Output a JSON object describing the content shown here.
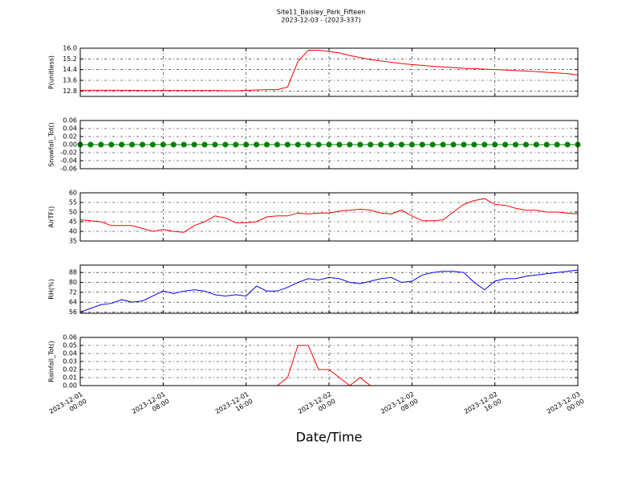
{
  "title": "Site11_Baisley_Park_Fifteen",
  "subtitle": "2023-12-03 - (2023-337)",
  "x_label": "Date/Time",
  "xlim": [
    "2023-12-01 00:00",
    "2023-12-03 00:00"
  ],
  "xticks": [
    "2023-12-01 00:00",
    "2023-12-01 08:00",
    "2023-12-01 16:00",
    "2023-12-02 00:00",
    "2023-12-02 08:00",
    "2023-12-02 16:00",
    "2023-12-03 00:00"
  ],
  "x": [
    "2023-12-01 00:00",
    "2023-12-01 01:00",
    "2023-12-01 02:00",
    "2023-12-01 03:00",
    "2023-12-01 04:00",
    "2023-12-01 05:00",
    "2023-12-01 06:00",
    "2023-12-01 07:00",
    "2023-12-01 08:00",
    "2023-12-01 09:00",
    "2023-12-01 10:00",
    "2023-12-01 11:00",
    "2023-12-01 12:00",
    "2023-12-01 13:00",
    "2023-12-01 14:00",
    "2023-12-01 15:00",
    "2023-12-01 16:00",
    "2023-12-01 17:00",
    "2023-12-01 18:00",
    "2023-12-01 19:00",
    "2023-12-01 20:00",
    "2023-12-01 21:00",
    "2023-12-01 22:00",
    "2023-12-01 23:00",
    "2023-12-02 00:00",
    "2023-12-02 01:00",
    "2023-12-02 02:00",
    "2023-12-02 03:00",
    "2023-12-02 04:00",
    "2023-12-02 05:00",
    "2023-12-02 06:00",
    "2023-12-02 07:00",
    "2023-12-02 08:00",
    "2023-12-02 09:00",
    "2023-12-02 10:00",
    "2023-12-02 11:00",
    "2023-12-02 12:00",
    "2023-12-02 13:00",
    "2023-12-02 14:00",
    "2023-12-02 15:00",
    "2023-12-02 16:00",
    "2023-12-02 17:00",
    "2023-12-02 18:00",
    "2023-12-02 19:00",
    "2023-12-02 20:00",
    "2023-12-02 21:00",
    "2023-12-02 22:00",
    "2023-12-02 23:00",
    "2023-12-03 00:00"
  ],
  "chart_data": [
    {
      "type": "line",
      "y_label": "P(unitless)",
      "color": "#ff0000",
      "grid": true,
      "ylim": [
        12.4,
        16.0
      ],
      "yticks": [
        12.8,
        13.6,
        14.4,
        15.2,
        {
          "value": 16,
          "label": "16.0"
        }
      ],
      "values": [
        12.86,
        12.86,
        12.86,
        12.86,
        12.86,
        12.85,
        12.84,
        12.84,
        12.84,
        12.84,
        12.84,
        12.84,
        12.84,
        12.84,
        12.83,
        12.82,
        12.85,
        12.88,
        12.9,
        12.9,
        13.1,
        15.0,
        15.85,
        15.85,
        15.75,
        15.65,
        15.45,
        15.3,
        15.15,
        15.05,
        14.95,
        14.85,
        14.78,
        14.72,
        14.65,
        14.6,
        14.55,
        14.5,
        14.47,
        14.43,
        14.4,
        14.37,
        14.33,
        14.3,
        14.25,
        14.2,
        14.15,
        14.1,
        14.0
      ]
    },
    {
      "type": "line",
      "y_label": "Snowfall_Tot()",
      "color": "#008000",
      "marker": "o",
      "grid": true,
      "ylim": [
        -0.06,
        0.06
      ],
      "yticks": [
        -0.06,
        -0.04,
        -0.02,
        {
          "value": 0,
          "label": "0.00"
        },
        0.02,
        0.04,
        0.06
      ],
      "values": [
        0,
        0,
        0,
        0,
        0,
        0,
        0,
        0,
        0,
        0,
        0,
        0,
        0,
        0,
        0,
        0,
        0,
        0,
        0,
        0,
        0,
        0,
        0,
        0,
        0,
        0,
        0,
        0,
        0,
        0,
        0,
        0,
        0,
        0,
        0,
        0,
        0,
        0,
        0,
        0,
        0,
        0,
        0,
        0,
        0,
        0,
        0,
        0,
        0
      ]
    },
    {
      "type": "line",
      "y_label": "AirTF()",
      "color": "#ff0000",
      "grid": true,
      "ylim": [
        35,
        60
      ],
      "yticks": [
        35,
        40,
        45,
        50,
        55,
        60
      ],
      "values": [
        46,
        45.5,
        45,
        43,
        43,
        43,
        41.5,
        40,
        41,
        40,
        39.5,
        43,
        45,
        48,
        47,
        44.5,
        44.5,
        45,
        47.5,
        48,
        48,
        49.5,
        49,
        49.5,
        49.5,
        50.5,
        51,
        51.5,
        51,
        49.5,
        49,
        51,
        48,
        45.5,
        45.5,
        46,
        50,
        54,
        56,
        57,
        54,
        53.5,
        52,
        51,
        51,
        50,
        50,
        49.5,
        49
      ]
    },
    {
      "type": "line",
      "y_label": "RH(%)",
      "color": "#0000ff",
      "grid": true,
      "ylim": [
        55,
        94
      ],
      "yticks": [
        56,
        64,
        72,
        80,
        88
      ],
      "values": [
        56,
        59,
        62,
        63,
        66,
        64,
        65,
        69,
        73,
        71,
        73,
        74,
        73,
        70,
        69,
        70,
        69,
        77,
        73,
        73,
        76,
        80,
        83,
        82,
        84,
        83,
        80,
        79,
        81,
        83,
        84,
        80,
        81,
        86,
        88,
        89,
        89,
        88,
        80,
        74,
        81,
        83,
        83,
        85,
        86,
        87,
        88,
        89,
        90
      ]
    },
    {
      "type": "line",
      "y_label": "Rainfall_Tot()",
      "color": "#ff0000",
      "grid": true,
      "ylim": [
        0,
        0.06
      ],
      "yticks": [
        {
          "value": 0,
          "label": "0.00"
        },
        0.01,
        0.02,
        0.03,
        0.04,
        0.05,
        0.06
      ],
      "values": [
        0,
        0,
        0,
        0,
        0,
        0,
        0,
        0,
        0,
        0,
        0,
        0,
        0,
        0,
        0,
        0,
        0,
        0,
        0,
        0,
        0.01,
        0.05,
        0.05,
        0.02,
        0.02,
        0.01,
        0,
        0.01,
        0,
        0,
        0,
        0,
        0,
        0,
        0,
        0,
        0,
        0,
        0,
        0,
        0,
        0,
        0,
        0,
        0,
        0,
        0,
        0,
        0
      ]
    }
  ]
}
